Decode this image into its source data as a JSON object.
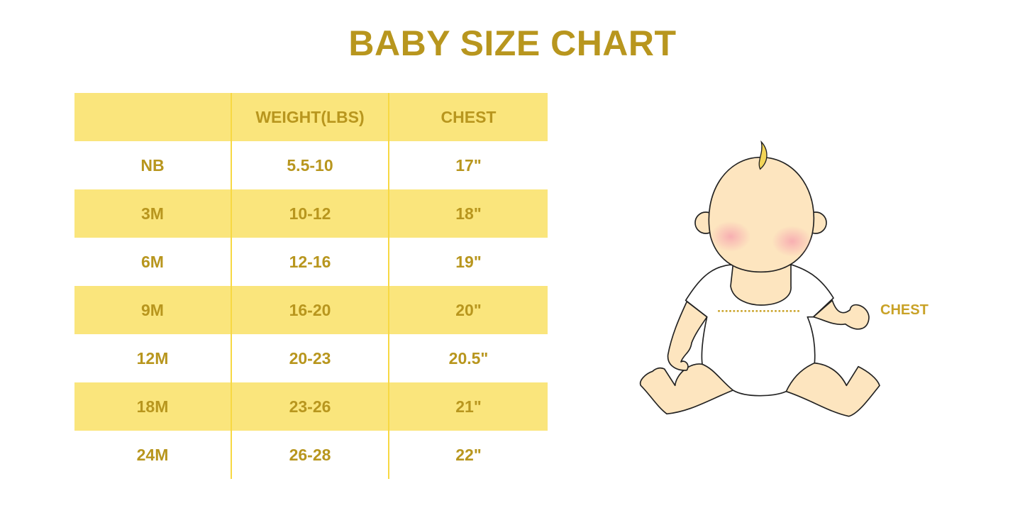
{
  "title": "BABY SIZE CHART",
  "table": {
    "headers": [
      "",
      "WEIGHT(LBS)",
      "CHEST"
    ],
    "rows": [
      [
        "NB",
        "5.5-10",
        "17\""
      ],
      [
        "3M",
        "10-12",
        "18\""
      ],
      [
        "6M",
        "12-16",
        "19\""
      ],
      [
        "9M",
        "16-20",
        "20\""
      ],
      [
        "12M",
        "20-23",
        "20.5\""
      ],
      [
        "18M",
        "23-26",
        "21\""
      ],
      [
        "24M",
        "26-28",
        "22\""
      ]
    ]
  },
  "illustration": {
    "chest_label": "CHEST"
  },
  "colors": {
    "text": "#b8961e",
    "stripe": "#fae57c",
    "divider": "#f7d842",
    "skin": "#fde5bf"
  }
}
